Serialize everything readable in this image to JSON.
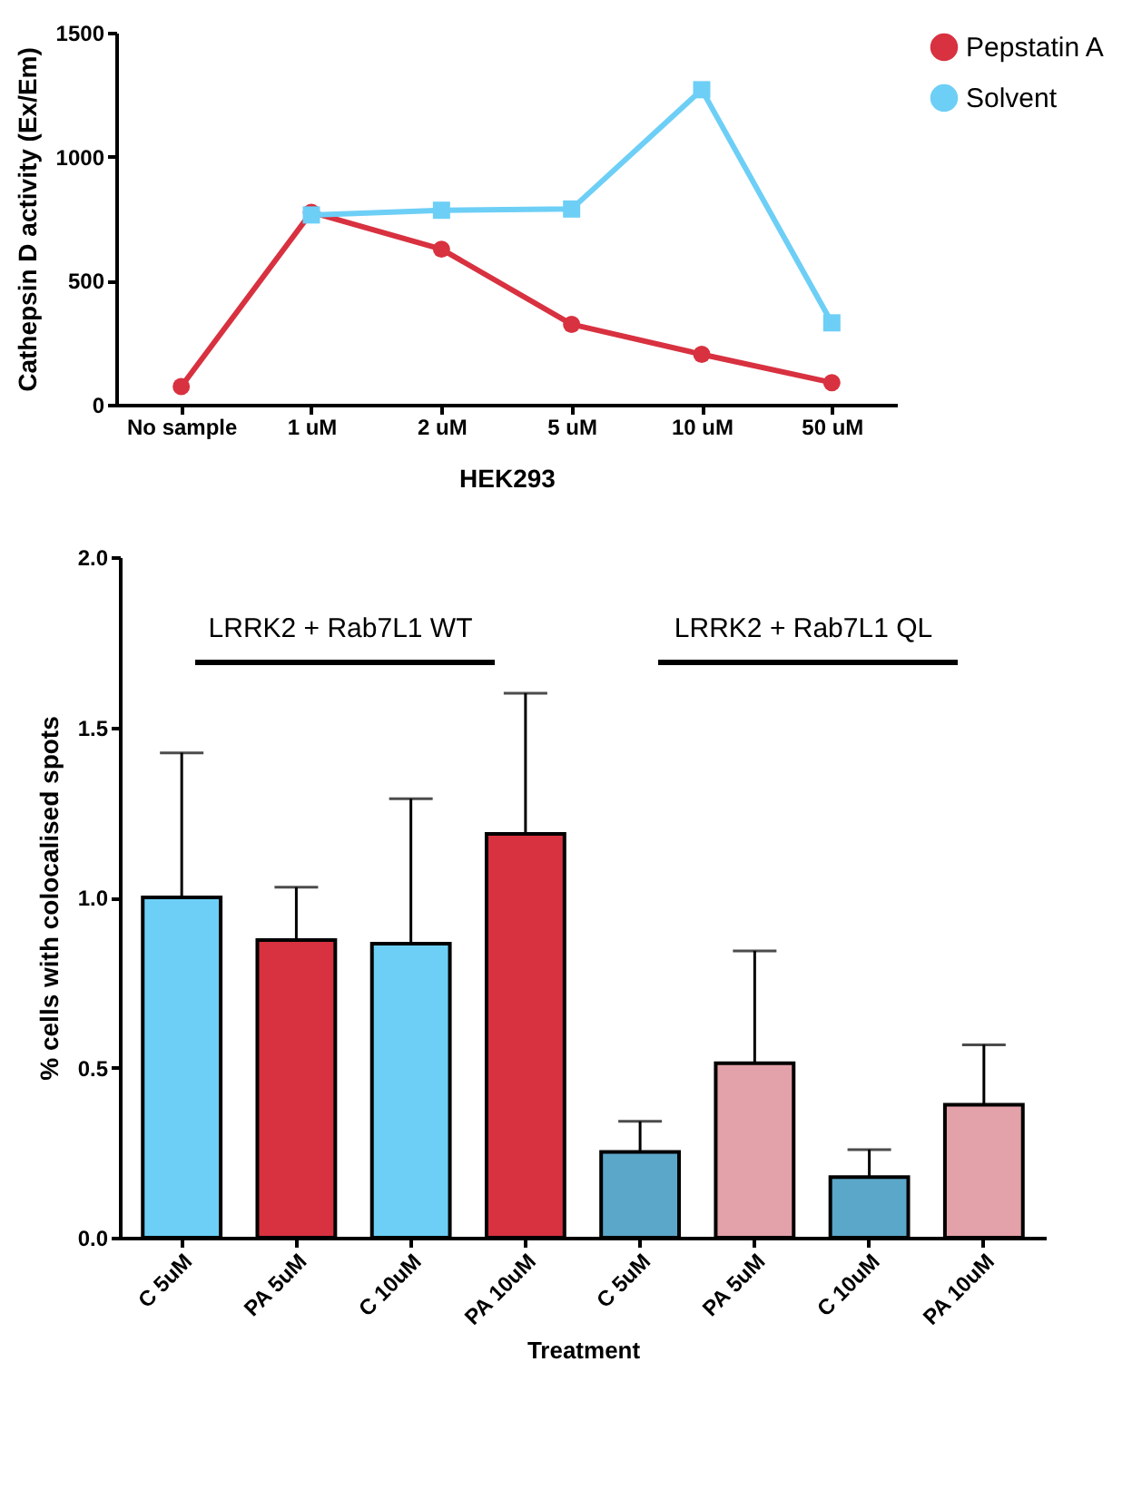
{
  "chart_data": [
    {
      "type": "line",
      "xlabel": "HEK293",
      "ylabel": "Cathepsin D activity (Ex/Em)",
      "categories": [
        "No sample",
        "1 uM",
        "2 uM",
        "5 uM",
        "10 uM",
        "50 uM"
      ],
      "series": [
        {
          "name": "Pepstatin A",
          "color": "#d83140",
          "marker": "circle",
          "values": [
            73,
            776,
            627,
            324,
            203,
            89
          ]
        },
        {
          "name": "Solvent",
          "color": "#6dcff6",
          "marker": "square",
          "values": [
            null,
            765,
            784,
            789,
            1270,
            330
          ]
        }
      ],
      "ylim": [
        0,
        1500
      ],
      "yticks": [
        0,
        500,
        1000,
        1500
      ],
      "grid": false,
      "legend": "top right",
      "line_style": "solid"
    },
    {
      "type": "bar",
      "xlabel": "Treatment",
      "ylabel": "% cells with colocalised spots",
      "categories": [
        "C 5uM",
        "PA 5uM",
        "C 10uM",
        "PA 10uM",
        "C 5uM",
        "PA 5uM",
        "C 10uM",
        "PA 10uM"
      ],
      "values": [
        1.0,
        0.875,
        0.864,
        1.187,
        0.252,
        0.513,
        0.178,
        0.391
      ],
      "errors": [
        [
          1.0,
          1.425
        ],
        [
          0.875,
          1.03
        ],
        [
          0.864,
          1.29
        ],
        [
          1.187,
          1.6
        ],
        [
          0.252,
          0.342
        ],
        [
          0.513,
          0.843
        ],
        [
          0.178,
          0.259
        ],
        [
          0.391,
          0.567
        ]
      ],
      "colors": [
        "#6dcff6",
        "#d83140",
        "#6dcff6",
        "#d83140",
        "#5ba7c9",
        "#e3a1a9",
        "#5ba7c9",
        "#e3a1a9"
      ],
      "ylim": [
        0,
        2.0
      ],
      "yticks": [
        {
          "value": 0,
          "label": "0.0"
        },
        {
          "value": 0.5,
          "label": "0.5"
        },
        {
          "value": 1,
          "label": "1.0"
        },
        {
          "value": 1.5,
          "label": "1.5"
        },
        {
          "value": 2,
          "label": "2.0"
        }
      ],
      "annotations": [
        "LRRK2 + Rab7L1 WT",
        "LRRK2 + Rab7L1 QL"
      ],
      "grid": false
    }
  ]
}
